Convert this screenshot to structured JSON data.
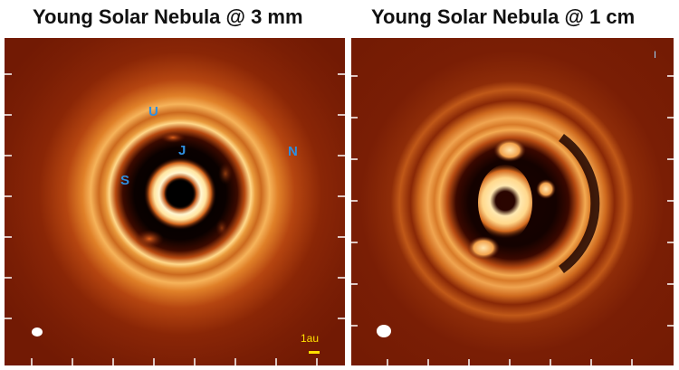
{
  "titles": {
    "left": "Young Solar Nebula @ 3 mm",
    "right": "Young Solar Nebula @ 1 cm"
  },
  "left_panel": {
    "planet_labels": {
      "uranus": "U",
      "jupiter": "J",
      "saturn": "S",
      "neptune": "N"
    },
    "scale_bar_label": "1au"
  },
  "right_panel": {
    "corner_mark": "I"
  },
  "colors": {
    "background": "#7a1d05",
    "ring_bright": "#ffe9b0",
    "ring_orange": "#e8822a",
    "gap_dark": "#140200",
    "planet_label": "#2f8fe0",
    "scale_bar": "#ffe000",
    "beam": "#ffffff",
    "ticks": "#ffffff"
  }
}
